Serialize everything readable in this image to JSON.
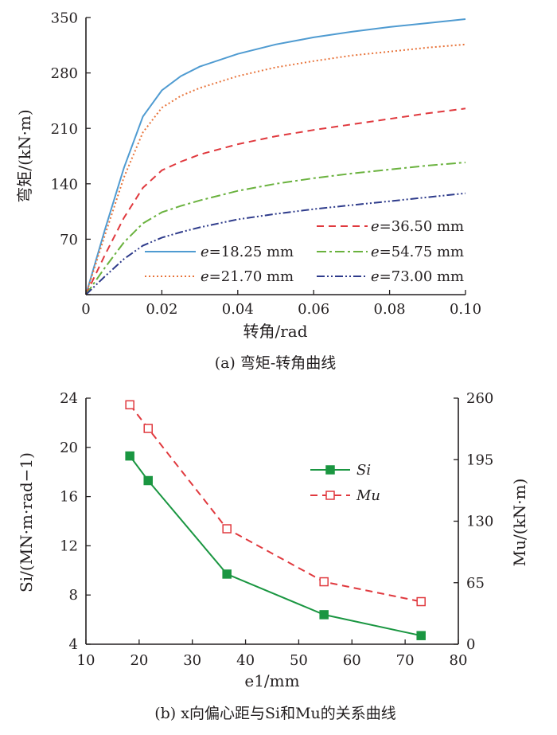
{
  "chart_data": [
    {
      "type": "line",
      "caption": "(a) 弯矩-转角曲线",
      "xlabel": "转角/rad",
      "ylabel": "弯矩/(kN·m)",
      "xlim": [
        0,
        0.1
      ],
      "ylim": [
        0,
        350
      ],
      "xticks": [
        "0",
        "0.02",
        "0.04",
        "0.06",
        "0.08",
        "0.10"
      ],
      "yticks": [
        "70",
        "140",
        "210",
        "280",
        "350"
      ],
      "origin_label": "0",
      "legend_placement": "bottom-right",
      "series": [
        {
          "name": "e=18.25 mm",
          "legend_var": "e",
          "legend_rest": "=18.25 mm",
          "color": "#4f9bd1",
          "dash": "solid",
          "x": [
            0,
            0.005,
            0.01,
            0.015,
            0.02,
            0.025,
            0.03,
            0.04,
            0.05,
            0.06,
            0.07,
            0.08,
            0.09,
            0.1
          ],
          "y": [
            0,
            82,
            160,
            225,
            258,
            276,
            288,
            304,
            316,
            325,
            332,
            338,
            343,
            348
          ]
        },
        {
          "name": "e=21.70 mm",
          "legend_var": "e",
          "legend_rest": "=21.70 mm",
          "color": "#e8743b",
          "dash": "dot",
          "x": [
            0,
            0.005,
            0.01,
            0.015,
            0.02,
            0.025,
            0.03,
            0.04,
            0.05,
            0.06,
            0.07,
            0.08,
            0.09,
            0.1
          ],
          "y": [
            0,
            75,
            148,
            205,
            236,
            251,
            261,
            276,
            287,
            295,
            302,
            307,
            312,
            316
          ]
        },
        {
          "name": "e=36.50 mm",
          "legend_var": "e",
          "legend_rest": "=36.50 mm",
          "color": "#e0393e",
          "dash": "dash",
          "x": [
            0,
            0.005,
            0.01,
            0.015,
            0.02,
            0.025,
            0.03,
            0.04,
            0.05,
            0.06,
            0.07,
            0.08,
            0.09,
            0.1
          ],
          "y": [
            0,
            50,
            97,
            135,
            157,
            168,
            177,
            190,
            200,
            208,
            215,
            222,
            229,
            235
          ]
        },
        {
          "name": "e=54.75 mm",
          "legend_var": "e",
          "legend_rest": "=54.75 mm",
          "color": "#6ab23e",
          "dash": "dashdot",
          "x": [
            0,
            0.005,
            0.01,
            0.015,
            0.02,
            0.025,
            0.03,
            0.04,
            0.05,
            0.06,
            0.07,
            0.08,
            0.09,
            0.1
          ],
          "y": [
            0,
            34,
            66,
            90,
            104,
            112,
            119,
            131,
            140,
            147,
            153,
            158,
            163,
            167
          ]
        },
        {
          "name": "e=73.00 mm",
          "legend_var": "e",
          "legend_rest": "=73.00 mm",
          "color": "#2e3b8b",
          "dash": "dashdotdot",
          "x": [
            0,
            0.005,
            0.01,
            0.015,
            0.02,
            0.025,
            0.03,
            0.04,
            0.05,
            0.06,
            0.07,
            0.08,
            0.09,
            0.1
          ],
          "y": [
            0,
            23,
            45,
            62,
            72,
            79,
            85,
            95,
            102,
            108,
            113,
            118,
            123,
            128
          ]
        }
      ]
    },
    {
      "type": "line",
      "caption": "(b) x向偏心距与Si和Mu的关系曲线",
      "xlabel": "e1/mm",
      "ylabel_left": "Si/(MN·m·rad−1)",
      "ylabel_right": "Mu/(kN·m)",
      "xlim": [
        10,
        80
      ],
      "ylim_left": [
        4,
        24
      ],
      "ylim_right": [
        0,
        260
      ],
      "xticks": [
        "10",
        "20",
        "30",
        "40",
        "50",
        "60",
        "70",
        "80"
      ],
      "yticks_left": [
        "4",
        "8",
        "12",
        "16",
        "20",
        "24"
      ],
      "yticks_right": [
        "0",
        "65",
        "130",
        "195",
        "260"
      ],
      "legend_placement": "top-right",
      "series": [
        {
          "name": "Si",
          "axis": "left",
          "color": "#1a9641",
          "dash": "solid",
          "marker": "filled-square",
          "x": [
            18.25,
            21.7,
            36.5,
            54.75,
            73.0
          ],
          "y": [
            19.3,
            17.3,
            9.7,
            6.4,
            4.7
          ]
        },
        {
          "name": "Mu",
          "axis": "right",
          "color": "#e0393e",
          "dash": "dash",
          "marker": "open-square",
          "x": [
            18.25,
            21.7,
            36.5,
            54.75,
            73.0
          ],
          "y": [
            253,
            228,
            122,
            66,
            45
          ]
        }
      ]
    }
  ]
}
